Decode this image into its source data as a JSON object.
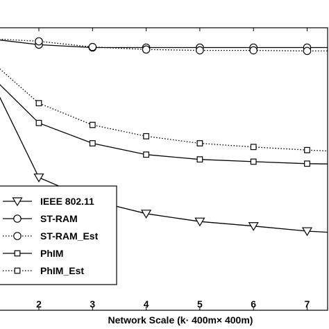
{
  "chart_data": {
    "type": "line",
    "title": "",
    "xlabel": "Network Scale (k· 400m× 400m)",
    "ylabel": "",
    "xlim": [
      1,
      7.4
    ],
    "ylim": [
      0,
      1
    ],
    "x_ticks": [
      2,
      3,
      4,
      5,
      6,
      7
    ],
    "x_tick_labels": [
      "2",
      "3",
      "4",
      "5",
      "6",
      "7"
    ],
    "grid": false,
    "legend_position": "bottom-left",
    "x": [
      1,
      2,
      3,
      4,
      5,
      6,
      7,
      7.4
    ],
    "series": [
      {
        "name": "IEEE 802.11",
        "style": "solid",
        "marker": "triangle-down",
        "values": [
          0.86,
          0.47,
          0.389,
          0.342,
          0.314,
          0.298,
          0.28,
          0.276
        ]
      },
      {
        "name": "ST-RAM",
        "style": "solid",
        "marker": "circle",
        "values": [
          0.963,
          0.94,
          0.93,
          0.93,
          0.93,
          0.93,
          0.93,
          0.93
        ]
      },
      {
        "name": "ST-RAM_Est",
        "style": "dotted",
        "marker": "circle",
        "values": [
          0.963,
          0.952,
          0.932,
          0.923,
          0.92,
          0.92,
          0.918,
          0.918
        ]
      },
      {
        "name": "PhIM",
        "style": "solid",
        "marker": "square",
        "values": [
          0.85,
          0.663,
          0.591,
          0.551,
          0.534,
          0.526,
          0.519,
          0.518
        ]
      },
      {
        "name": "PhIM_Est",
        "style": "dotted",
        "marker": "square",
        "values": [
          0.9,
          0.733,
          0.656,
          0.616,
          0.591,
          0.578,
          0.567,
          0.564
        ]
      }
    ]
  }
}
